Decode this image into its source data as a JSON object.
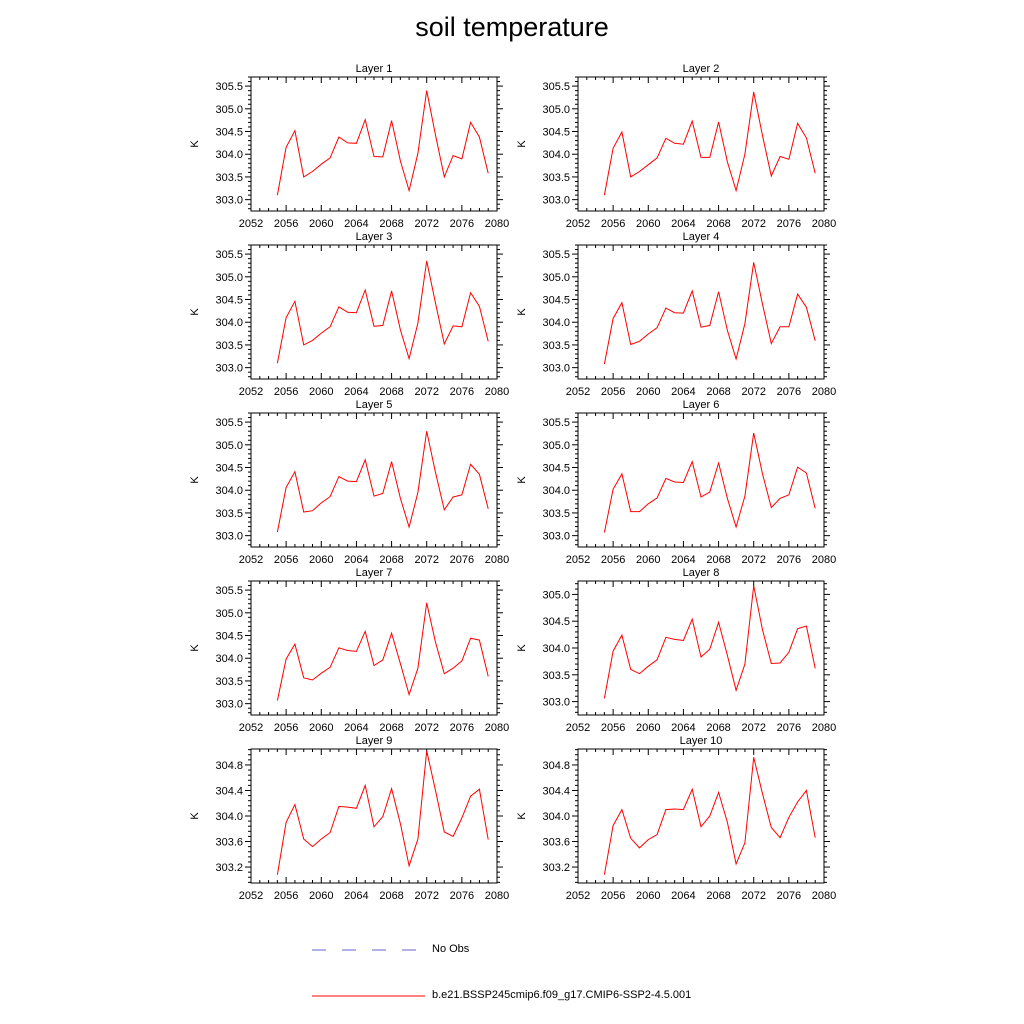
{
  "title": "soil temperature",
  "colors": {
    "series": "#ff0000",
    "obs": "#6666cc",
    "axis": "#000000"
  },
  "legend": {
    "obs_label": "No Obs",
    "model_label": "b.e21.BSSP245cmip6.f09_g17.CMIP6-SSP2-4.5.001"
  },
  "chart_data": [
    {
      "type": "line",
      "subtitle": "Layer 1",
      "ylabel": "K",
      "xlim": [
        2052,
        2080
      ],
      "ylim": [
        302.75,
        305.7
      ],
      "xticks": [
        2052,
        2056,
        2060,
        2064,
        2068,
        2072,
        2076,
        2080
      ],
      "xtick_labels": [
        "2052",
        "2056",
        "2060",
        "2064",
        "2068",
        "2072",
        "2076",
        "2080"
      ],
      "yticks": [
        303.0,
        303.5,
        304.0,
        304.5,
        305.0,
        305.5
      ],
      "ytick_labels": [
        "303.0",
        "303.5",
        "304.0",
        "304.5",
        "305.0",
        "305.5"
      ],
      "x": [
        2055,
        2056,
        2057,
        2058,
        2059,
        2060,
        2061,
        2062,
        2063,
        2064,
        2065,
        2066,
        2067,
        2068,
        2069,
        2070,
        2071,
        2072,
        2073,
        2074,
        2075,
        2076,
        2077,
        2078,
        2079
      ],
      "series": [
        {
          "name": "b.e21.BSSP245cmip6.f09_g17.CMIP6-SSP2-4.5.001",
          "values": [
            303.1,
            304.15,
            304.52,
            303.5,
            303.62,
            303.78,
            303.92,
            304.38,
            304.25,
            304.24,
            304.76,
            303.95,
            303.94,
            304.74,
            303.85,
            303.2,
            304.02,
            305.4,
            304.42,
            303.5,
            303.97,
            303.9,
            304.7,
            304.38,
            303.58
          ]
        }
      ]
    },
    {
      "type": "line",
      "subtitle": "Layer 2",
      "ylabel": "K",
      "xlim": [
        2052,
        2080
      ],
      "ylim": [
        302.75,
        305.7
      ],
      "xticks": [
        2052,
        2056,
        2060,
        2064,
        2068,
        2072,
        2076,
        2080
      ],
      "xtick_labels": [
        "2052",
        "2056",
        "2060",
        "2064",
        "2068",
        "2072",
        "2076",
        "2080"
      ],
      "yticks": [
        303.0,
        303.5,
        304.0,
        304.5,
        305.0,
        305.5
      ],
      "ytick_labels": [
        "303.0",
        "303.5",
        "304.0",
        "304.5",
        "305.0",
        "305.5"
      ],
      "x": [
        2055,
        2056,
        2057,
        2058,
        2059,
        2060,
        2061,
        2062,
        2063,
        2064,
        2065,
        2066,
        2067,
        2068,
        2069,
        2070,
        2071,
        2072,
        2073,
        2074,
        2075,
        2076,
        2077,
        2078,
        2079
      ],
      "series": [
        {
          "name": "b.e21.BSSP245cmip6.f09_g17.CMIP6-SSP2-4.5.001",
          "values": [
            303.1,
            304.13,
            304.49,
            303.5,
            303.62,
            303.77,
            303.92,
            304.35,
            304.24,
            304.22,
            304.73,
            303.93,
            303.93,
            304.71,
            303.83,
            303.2,
            304.0,
            305.37,
            304.41,
            303.52,
            303.95,
            303.89,
            304.68,
            304.36,
            303.58
          ]
        }
      ]
    },
    {
      "type": "line",
      "subtitle": "Layer 3",
      "ylabel": "K",
      "xlim": [
        2052,
        2080
      ],
      "ylim": [
        302.75,
        305.7
      ],
      "xticks": [
        2052,
        2056,
        2060,
        2064,
        2068,
        2072,
        2076,
        2080
      ],
      "xtick_labels": [
        "2052",
        "2056",
        "2060",
        "2064",
        "2068",
        "2072",
        "2076",
        "2080"
      ],
      "yticks": [
        303.0,
        303.5,
        304.0,
        304.5,
        305.0,
        305.5
      ],
      "ytick_labels": [
        "303.0",
        "303.5",
        "304.0",
        "304.5",
        "305.0",
        "305.5"
      ],
      "x": [
        2055,
        2056,
        2057,
        2058,
        2059,
        2060,
        2061,
        2062,
        2063,
        2064,
        2065,
        2066,
        2067,
        2068,
        2069,
        2070,
        2071,
        2072,
        2073,
        2074,
        2075,
        2076,
        2077,
        2078,
        2079
      ],
      "series": [
        {
          "name": "b.e21.BSSP245cmip6.f09_g17.CMIP6-SSP2-4.5.001",
          "values": [
            303.1,
            304.1,
            304.46,
            303.5,
            303.6,
            303.76,
            303.9,
            304.34,
            304.22,
            304.21,
            304.71,
            303.91,
            303.93,
            304.69,
            303.83,
            303.2,
            303.98,
            305.35,
            304.42,
            303.52,
            303.92,
            303.9,
            304.65,
            304.35,
            303.58
          ]
        }
      ]
    },
    {
      "type": "line",
      "subtitle": "Layer 4",
      "ylabel": "K",
      "xlim": [
        2052,
        2080
      ],
      "ylim": [
        302.75,
        305.7
      ],
      "xticks": [
        2052,
        2056,
        2060,
        2064,
        2068,
        2072,
        2076,
        2080
      ],
      "xtick_labels": [
        "2052",
        "2056",
        "2060",
        "2064",
        "2068",
        "2072",
        "2076",
        "2080"
      ],
      "yticks": [
        303.0,
        303.5,
        304.0,
        304.5,
        305.0,
        305.5
      ],
      "ytick_labels": [
        "303.0",
        "303.5",
        "304.0",
        "304.5",
        "305.0",
        "305.5"
      ],
      "x": [
        2055,
        2056,
        2057,
        2058,
        2059,
        2060,
        2061,
        2062,
        2063,
        2064,
        2065,
        2066,
        2067,
        2068,
        2069,
        2070,
        2071,
        2072,
        2073,
        2074,
        2075,
        2076,
        2077,
        2078,
        2079
      ],
      "series": [
        {
          "name": "b.e21.BSSP245cmip6.f09_g17.CMIP6-SSP2-4.5.001",
          "values": [
            303.08,
            304.08,
            304.43,
            303.51,
            303.58,
            303.74,
            303.88,
            304.31,
            304.21,
            304.2,
            304.69,
            303.89,
            303.93,
            304.67,
            303.82,
            303.19,
            303.97,
            305.32,
            304.4,
            303.53,
            303.9,
            303.9,
            304.62,
            304.33,
            303.59
          ]
        }
      ]
    },
    {
      "type": "line",
      "subtitle": "Layer 5",
      "ylabel": "K",
      "xlim": [
        2052,
        2080
      ],
      "ylim": [
        302.75,
        305.7
      ],
      "xticks": [
        2052,
        2056,
        2060,
        2064,
        2068,
        2072,
        2076,
        2080
      ],
      "xtick_labels": [
        "2052",
        "2056",
        "2060",
        "2064",
        "2068",
        "2072",
        "2076",
        "2080"
      ],
      "yticks": [
        303.0,
        303.5,
        304.0,
        304.5,
        305.0,
        305.5
      ],
      "ytick_labels": [
        "303.0",
        "303.5",
        "304.0",
        "304.5",
        "305.0",
        "305.5"
      ],
      "x": [
        2055,
        2056,
        2057,
        2058,
        2059,
        2060,
        2061,
        2062,
        2063,
        2064,
        2065,
        2066,
        2067,
        2068,
        2069,
        2070,
        2071,
        2072,
        2073,
        2074,
        2075,
        2076,
        2077,
        2078,
        2079
      ],
      "series": [
        {
          "name": "b.e21.BSSP245cmip6.f09_g17.CMIP6-SSP2-4.5.001",
          "values": [
            303.08,
            304.06,
            304.41,
            303.52,
            303.55,
            303.72,
            303.86,
            304.3,
            304.2,
            304.19,
            304.67,
            303.87,
            303.93,
            304.63,
            303.82,
            303.19,
            303.95,
            305.3,
            304.39,
            303.57,
            303.85,
            303.9,
            304.57,
            304.35,
            303.59
          ]
        }
      ]
    },
    {
      "type": "line",
      "subtitle": "Layer 6",
      "ylabel": "K",
      "xlim": [
        2052,
        2080
      ],
      "ylim": [
        302.75,
        305.7
      ],
      "xticks": [
        2052,
        2056,
        2060,
        2064,
        2068,
        2072,
        2076,
        2080
      ],
      "xtick_labels": [
        "2052",
        "2056",
        "2060",
        "2064",
        "2068",
        "2072",
        "2076",
        "2080"
      ],
      "yticks": [
        303.0,
        303.5,
        304.0,
        304.5,
        305.0,
        305.5
      ],
      "ytick_labels": [
        "303.0",
        "303.5",
        "304.0",
        "304.5",
        "305.0",
        "305.5"
      ],
      "x": [
        2055,
        2056,
        2057,
        2058,
        2059,
        2060,
        2061,
        2062,
        2063,
        2064,
        2065,
        2066,
        2067,
        2068,
        2069,
        2070,
        2071,
        2072,
        2073,
        2074,
        2075,
        2076,
        2077,
        2078,
        2079
      ],
      "series": [
        {
          "name": "b.e21.BSSP245cmip6.f09_g17.CMIP6-SSP2-4.5.001",
          "values": [
            303.07,
            304.02,
            304.36,
            303.53,
            303.53,
            303.7,
            303.83,
            304.26,
            304.18,
            304.17,
            304.63,
            303.85,
            303.96,
            304.6,
            303.82,
            303.19,
            303.87,
            305.26,
            304.36,
            303.62,
            303.82,
            303.9,
            304.51,
            304.38,
            303.6
          ]
        }
      ]
    },
    {
      "type": "line",
      "subtitle": "Layer 7",
      "ylabel": "K",
      "xlim": [
        2052,
        2080
      ],
      "ylim": [
        302.75,
        305.7
      ],
      "xticks": [
        2052,
        2056,
        2060,
        2064,
        2068,
        2072,
        2076,
        2080
      ],
      "xtick_labels": [
        "2052",
        "2056",
        "2060",
        "2064",
        "2068",
        "2072",
        "2076",
        "2080"
      ],
      "yticks": [
        303.0,
        303.5,
        304.0,
        304.5,
        305.0,
        305.5
      ],
      "ytick_labels": [
        "303.0",
        "303.5",
        "304.0",
        "304.5",
        "305.0",
        "305.5"
      ],
      "x": [
        2055,
        2056,
        2057,
        2058,
        2059,
        2060,
        2061,
        2062,
        2063,
        2064,
        2065,
        2066,
        2067,
        2068,
        2069,
        2070,
        2071,
        2072,
        2073,
        2074,
        2075,
        2076,
        2077,
        2078,
        2079
      ],
      "series": [
        {
          "name": "b.e21.BSSP245cmip6.f09_g17.CMIP6-SSP2-4.5.001",
          "values": [
            303.07,
            303.98,
            304.31,
            303.57,
            303.52,
            303.67,
            303.8,
            304.23,
            304.17,
            304.15,
            304.59,
            303.84,
            303.96,
            304.55,
            303.88,
            303.2,
            303.78,
            305.22,
            304.35,
            303.66,
            303.78,
            303.94,
            304.44,
            304.4,
            303.6
          ]
        }
      ]
    },
    {
      "type": "line",
      "subtitle": "Layer 8",
      "ylabel": "K",
      "xlim": [
        2052,
        2080
      ],
      "ylim": [
        302.75,
        305.25
      ],
      "xticks": [
        2052,
        2056,
        2060,
        2064,
        2068,
        2072,
        2076,
        2080
      ],
      "xtick_labels": [
        "2052",
        "2056",
        "2060",
        "2064",
        "2068",
        "2072",
        "2076",
        "2080"
      ],
      "yticks": [
        303.0,
        303.5,
        304.0,
        304.5,
        305.0
      ],
      "ytick_labels": [
        "303.0",
        "303.5",
        "304.0",
        "304.5",
        "305.0"
      ],
      "x": [
        2055,
        2056,
        2057,
        2058,
        2059,
        2060,
        2061,
        2062,
        2063,
        2064,
        2065,
        2066,
        2067,
        2068,
        2069,
        2070,
        2071,
        2072,
        2073,
        2074,
        2075,
        2076,
        2077,
        2078,
        2079
      ],
      "series": [
        {
          "name": "b.e21.BSSP245cmip6.f09_g17.CMIP6-SSP2-4.5.001",
          "values": [
            303.06,
            303.94,
            304.24,
            303.6,
            303.52,
            303.66,
            303.78,
            304.2,
            304.16,
            304.14,
            304.54,
            303.83,
            303.98,
            304.48,
            303.86,
            303.21,
            303.7,
            305.16,
            304.34,
            303.71,
            303.72,
            303.92,
            304.36,
            304.41,
            303.62
          ]
        }
      ]
    },
    {
      "type": "line",
      "subtitle": "Layer 9",
      "ylabel": "K",
      "xlim": [
        2052,
        2080
      ],
      "ylim": [
        302.95,
        305.05
      ],
      "xticks": [
        2052,
        2056,
        2060,
        2064,
        2068,
        2072,
        2076,
        2080
      ],
      "xtick_labels": [
        "2052",
        "2056",
        "2060",
        "2064",
        "2068",
        "2072",
        "2076",
        "2080"
      ],
      "yticks": [
        303.2,
        303.6,
        304.0,
        304.4,
        304.8
      ],
      "ytick_labels": [
        "303.2",
        "303.6",
        "304.0",
        "304.4",
        "304.8"
      ],
      "x": [
        2055,
        2056,
        2057,
        2058,
        2059,
        2060,
        2061,
        2062,
        2063,
        2064,
        2065,
        2066,
        2067,
        2068,
        2069,
        2070,
        2071,
        2072,
        2073,
        2074,
        2075,
        2076,
        2077,
        2078,
        2079
      ],
      "series": [
        {
          "name": "b.e21.BSSP245cmip6.f09_g17.CMIP6-SSP2-4.5.001",
          "values": [
            303.08,
            303.9,
            304.18,
            303.64,
            303.52,
            303.64,
            303.74,
            304.15,
            304.14,
            304.12,
            304.48,
            303.83,
            303.99,
            304.43,
            303.88,
            303.22,
            303.64,
            305.02,
            304.4,
            303.75,
            303.68,
            303.97,
            304.31,
            304.42,
            303.63
          ]
        }
      ]
    },
    {
      "type": "line",
      "subtitle": "Layer 10",
      "ylabel": "K",
      "xlim": [
        2052,
        2080
      ],
      "ylim": [
        302.95,
        305.05
      ],
      "xticks": [
        2052,
        2056,
        2060,
        2064,
        2068,
        2072,
        2076,
        2080
      ],
      "xtick_labels": [
        "2052",
        "2056",
        "2060",
        "2064",
        "2068",
        "2072",
        "2076",
        "2080"
      ],
      "yticks": [
        303.2,
        303.6,
        304.0,
        304.4,
        304.8
      ],
      "ytick_labels": [
        "303.2",
        "303.6",
        "304.0",
        "304.4",
        "304.8"
      ],
      "x": [
        2055,
        2056,
        2057,
        2058,
        2059,
        2060,
        2061,
        2062,
        2063,
        2064,
        2065,
        2066,
        2067,
        2068,
        2069,
        2070,
        2071,
        2072,
        2073,
        2074,
        2075,
        2076,
        2077,
        2078,
        2079
      ],
      "series": [
        {
          "name": "b.e21.BSSP245cmip6.f09_g17.CMIP6-SSP2-4.5.001",
          "values": [
            303.08,
            303.85,
            304.1,
            303.65,
            303.5,
            303.63,
            303.71,
            304.1,
            304.11,
            304.1,
            304.42,
            303.83,
            304.0,
            304.37,
            303.9,
            303.25,
            303.58,
            304.92,
            304.35,
            303.82,
            303.66,
            303.98,
            304.22,
            304.4,
            303.66
          ]
        }
      ]
    }
  ]
}
